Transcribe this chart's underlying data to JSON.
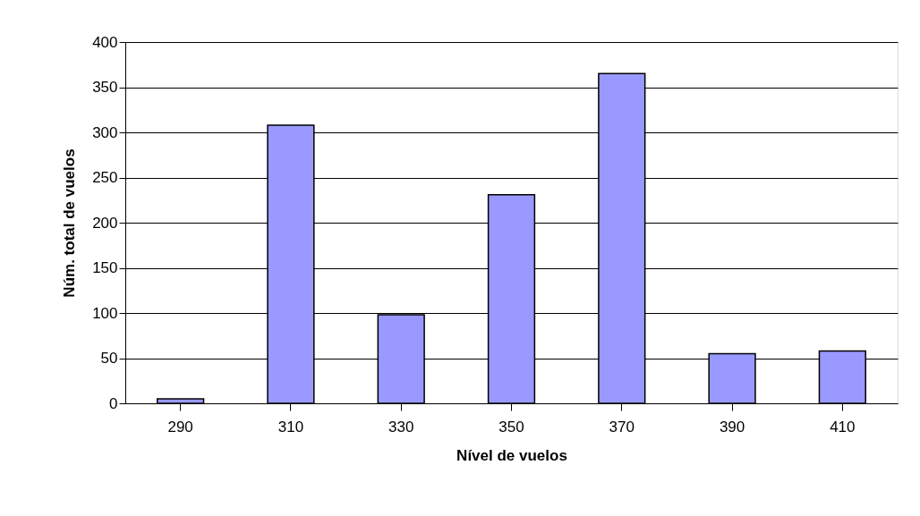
{
  "chart_data": {
    "type": "bar",
    "xlabel": "Nível de vuelos",
    "ylabel": "Núm. total de vuelos",
    "categories": [
      "290",
      "310",
      "330",
      "350",
      "370",
      "390",
      "410"
    ],
    "series": [
      {
        "color": "#9999ff",
        "values": [
          5,
          308,
          98,
          231,
          365,
          55,
          58
        ]
      }
    ],
    "ylim": [
      0,
      400
    ],
    "yticks": [
      0,
      50,
      100,
      150,
      200,
      250,
      300,
      350,
      400
    ],
    "grid": "y",
    "legend": false
  }
}
